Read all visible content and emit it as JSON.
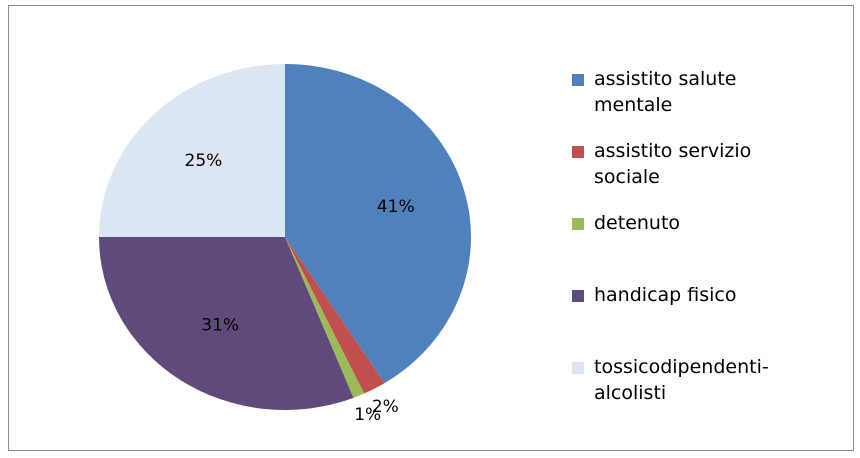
{
  "chart_data": {
    "type": "pie",
    "categories": [
      "assistito salute mentale",
      "assistito servizio sociale",
      "detenuto",
      "handicap fisico",
      "tossicodipendenti-alcolisti"
    ],
    "values": [
      41,
      2,
      1,
      31,
      25
    ],
    "value_labels": [
      "41%",
      "2%",
      "1%",
      "31%",
      "25%"
    ],
    "colors": [
      "#4f81bd",
      "#c0504d",
      "#9bbb59",
      "#604a7b",
      "#dce6f2"
    ]
  }
}
